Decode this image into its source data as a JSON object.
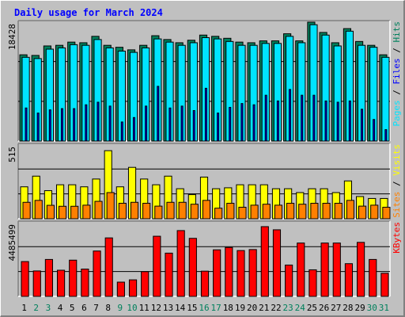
{
  "chart_data": [
    {
      "type": "bar",
      "title": "Daily usage for March 2024",
      "ymax_label": "18428",
      "ylim": [
        0,
        18428
      ],
      "legend": [
        "Pages",
        "Files",
        "Hits"
      ],
      "legend_separator": " / ",
      "categories": [
        "1",
        "2",
        "3",
        "4",
        "5",
        "6",
        "7",
        "8",
        "9",
        "10",
        "11",
        "12",
        "13",
        "14",
        "15",
        "16",
        "17",
        "18",
        "19",
        "20",
        "21",
        "22",
        "23",
        "24",
        "25",
        "26",
        "27",
        "28",
        "29",
        "30",
        "31"
      ],
      "weekend_days": [
        "2",
        "3",
        "9",
        "10",
        "16",
        "17",
        "23",
        "24",
        "30",
        "31"
      ],
      "series": [
        {
          "name": "Hits",
          "values": [
            13740,
            13640,
            15150,
            15250,
            15760,
            15660,
            16680,
            15250,
            14940,
            14530,
            15250,
            16780,
            16170,
            15660,
            16060,
            16880,
            16680,
            16370,
            15760,
            15660,
            15960,
            15960,
            17090,
            15960,
            18940,
            17300,
            15660,
            17910,
            15860,
            15250,
            13740
          ]
        },
        {
          "name": "Files",
          "values": [
            13340,
            13140,
            14640,
            14840,
            15350,
            15250,
            16170,
            14840,
            14330,
            14130,
            14840,
            16270,
            15760,
            15250,
            15660,
            16470,
            16270,
            15860,
            15250,
            15250,
            15550,
            15550,
            16680,
            15660,
            18530,
            16880,
            15150,
            17500,
            15250,
            14940,
            13340
          ]
        },
        {
          "name": "Pages",
          "values": [
            5270,
            4460,
            4970,
            5170,
            5170,
            5780,
            6190,
            5570,
            3040,
            3750,
            5570,
            8720,
            5270,
            5570,
            4860,
            8410,
            4460,
            5370,
            5980,
            5780,
            7300,
            6390,
            8220,
            7300,
            7300,
            6390,
            6190,
            6390,
            5070,
            3440,
            1820
          ]
        }
      ]
    },
    {
      "type": "bar",
      "ymax_label": "515",
      "ylim": [
        0,
        515
      ],
      "legend": [
        "Sites",
        "Visits"
      ],
      "legend_separator": " / ",
      "categories": [
        "1",
        "2",
        "3",
        "4",
        "5",
        "6",
        "7",
        "8",
        "9",
        "10",
        "11",
        "12",
        "13",
        "14",
        "15",
        "16",
        "17",
        "18",
        "19",
        "20",
        "21",
        "22",
        "23",
        "24",
        "25",
        "26",
        "27",
        "28",
        "29",
        "30",
        "31"
      ],
      "series": [
        {
          "name": "Visits",
          "values": [
            233,
            311,
            205,
            248,
            248,
            233,
            290,
            497,
            233,
            375,
            290,
            248,
            311,
            219,
            176,
            304,
            219,
            226,
            248,
            248,
            248,
            219,
            219,
            191,
            219,
            219,
            191,
            276,
            162,
            148,
            148
          ]
        },
        {
          "name": "Sites",
          "values": [
            120,
            134,
            98,
            91,
            91,
            99,
            127,
            191,
            113,
            120,
            113,
            92,
            120,
            120,
            106,
            134,
            77,
            113,
            84,
            99,
            106,
            99,
            113,
            106,
            113,
            113,
            113,
            134,
            92,
            99,
            84
          ]
        }
      ]
    },
    {
      "type": "bar",
      "ymax_label": "4485499",
      "ylim": [
        0,
        4485499
      ],
      "legend": [
        "KBytes"
      ],
      "categories": [
        "1",
        "2",
        "3",
        "4",
        "5",
        "6",
        "7",
        "8",
        "9",
        "10",
        "11",
        "12",
        "13",
        "14",
        "15",
        "16",
        "17",
        "18",
        "19",
        "20",
        "21",
        "22",
        "23",
        "24",
        "25",
        "26",
        "27",
        "28",
        "29",
        "30",
        "31"
      ],
      "series": [
        {
          "name": "KBytes",
          "values": [
            2215000,
            1618000,
            2349000,
            1664000,
            2305000,
            1738000,
            2886000,
            3721000,
            907000,
            1053000,
            1574000,
            3826000,
            2752000,
            4186000,
            3692000,
            1605000,
            2962000,
            3112000,
            2916000,
            2978000,
            4436000,
            4236000,
            1994000,
            3394000,
            1691000,
            3394000,
            3394000,
            2081000,
            3436000,
            2349000,
            1470000
          ]
        }
      ]
    }
  ],
  "colors": {
    "title": "#0000ff",
    "hits": "#00805c",
    "files": "#00e4ff",
    "pages": "#0000ff",
    "visits": "#ffff00",
    "sites": "#ff8000",
    "kbytes": "#ff0000",
    "weekday_label": "#000000",
    "weekend_label": "#00805c",
    "plot_bg": "#c0c0c0",
    "page_bg": "#c0c0c0"
  }
}
